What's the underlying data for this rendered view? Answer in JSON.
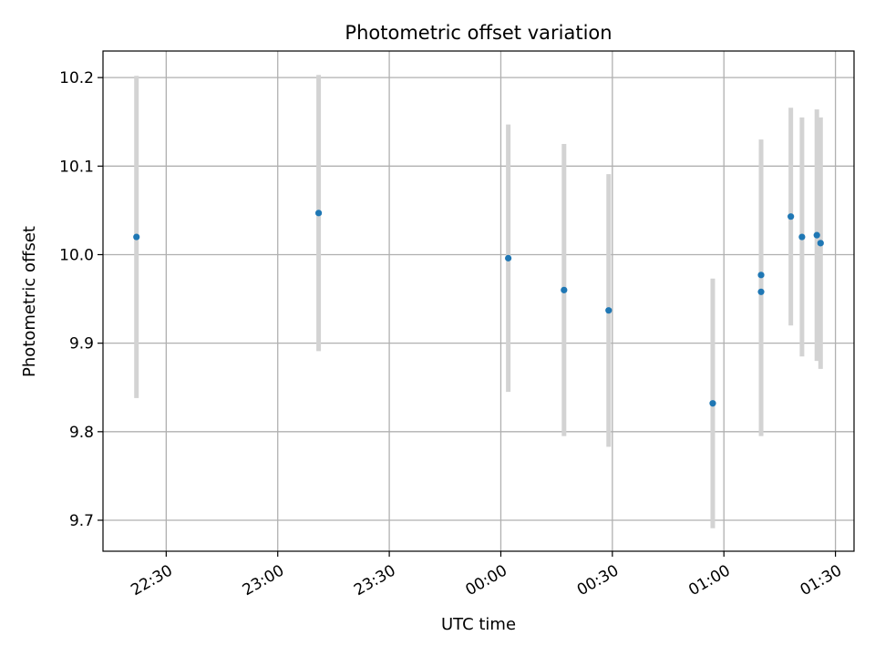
{
  "chart_data": {
    "type": "scatter",
    "title": "Photometric offset variation",
    "xlabel": "UTC time",
    "ylabel": "Photometric offset",
    "xlim": [
      "22:13",
      "01:35"
    ],
    "ylim": [
      9.665,
      10.23
    ],
    "x_ticks": [
      "22:30",
      "23:00",
      "23:30",
      "00:00",
      "00:30",
      "01:00",
      "01:30"
    ],
    "y_ticks": [
      "9.7",
      "9.8",
      "9.9",
      "10.0",
      "10.1",
      "10.2"
    ],
    "grid": true,
    "colors": {
      "points": "#1f77b4",
      "errorbars": "#d3d3d3",
      "grid": "#b0b0b0"
    },
    "points": [
      {
        "x": "22:22",
        "y": 10.02,
        "yerr": 0.182
      },
      {
        "x": "23:11",
        "y": 10.047,
        "yerr": 0.156
      },
      {
        "x": "00:02",
        "y": 9.996,
        "yerr": 0.151
      },
      {
        "x": "00:17",
        "y": 9.96,
        "yerr": 0.165
      },
      {
        "x": "00:29",
        "y": 9.937,
        "yerr": 0.154
      },
      {
        "x": "00:57",
        "y": 9.832,
        "yerr": 0.141
      },
      {
        "x": "01:10",
        "y": 9.977,
        "yerr": 0.153
      },
      {
        "x": "01:10",
        "y": 9.958,
        "yerr": 0.163
      },
      {
        "x": "01:18",
        "y": 10.043,
        "yerr": 0.123
      },
      {
        "x": "01:21",
        "y": 10.02,
        "yerr": 0.135
      },
      {
        "x": "01:25",
        "y": 10.022,
        "yerr": 0.142
      },
      {
        "x": "01:26",
        "y": 10.013,
        "yerr": 0.142
      }
    ]
  }
}
